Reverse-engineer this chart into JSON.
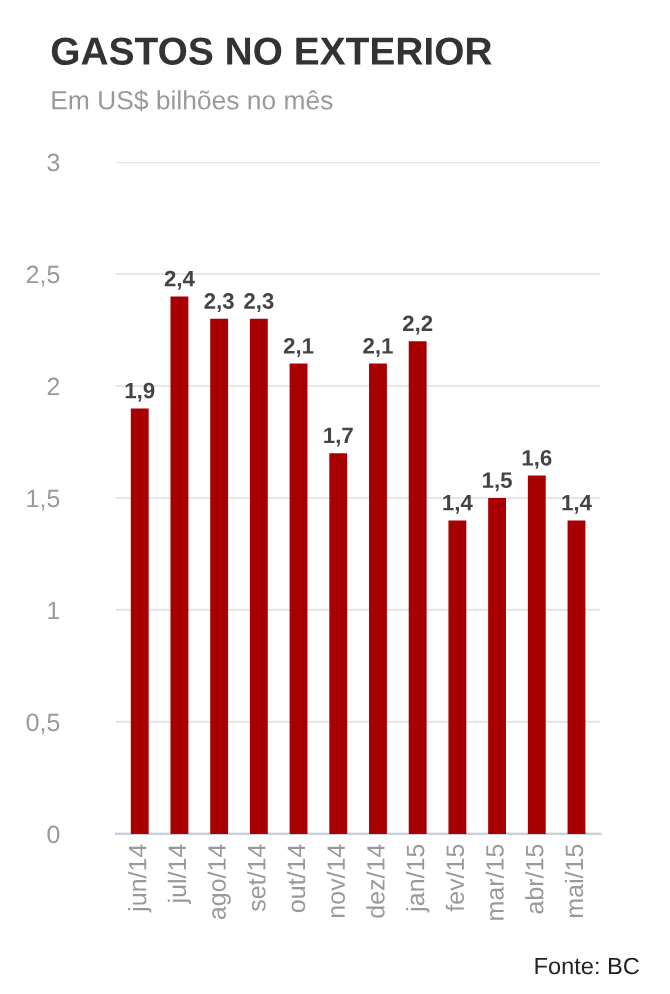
{
  "chart_data": {
    "type": "bar",
    "title": "GASTOS NO EXTERIOR",
    "subtitle": "Em US$ bilhões no mês",
    "categories": [
      "jun/14",
      "jul/14",
      "ago/14",
      "set/14",
      "out/14",
      "nov/14",
      "dez/14",
      "jan/15",
      "fev/15",
      "mar/15",
      "abr/15",
      "mai/15"
    ],
    "series": [
      {
        "color": "#a80000",
        "values": [
          1.9,
          2.4,
          2.3,
          2.3,
          2.1,
          1.7,
          2.1,
          2.2,
          1.4,
          1.5,
          1.6,
          1.4
        ],
        "value_labels": [
          "1,9",
          "2,4",
          "2,3",
          "2,3",
          "2,1",
          "1,7",
          "2,1",
          "2,2",
          "1,4",
          "1,5",
          "1,6",
          "1,4"
        ]
      }
    ],
    "ylim": [
      0,
      3
    ],
    "yticks": [
      0,
      {
        "value": 0.5,
        "label": "0,5"
      },
      1,
      {
        "value": 1.5,
        "label": "1,5"
      },
      2,
      {
        "value": 2.5,
        "label": "2,5"
      },
      3
    ],
    "grid": "y",
    "annotations": [
      "Fonte: BC"
    ]
  }
}
